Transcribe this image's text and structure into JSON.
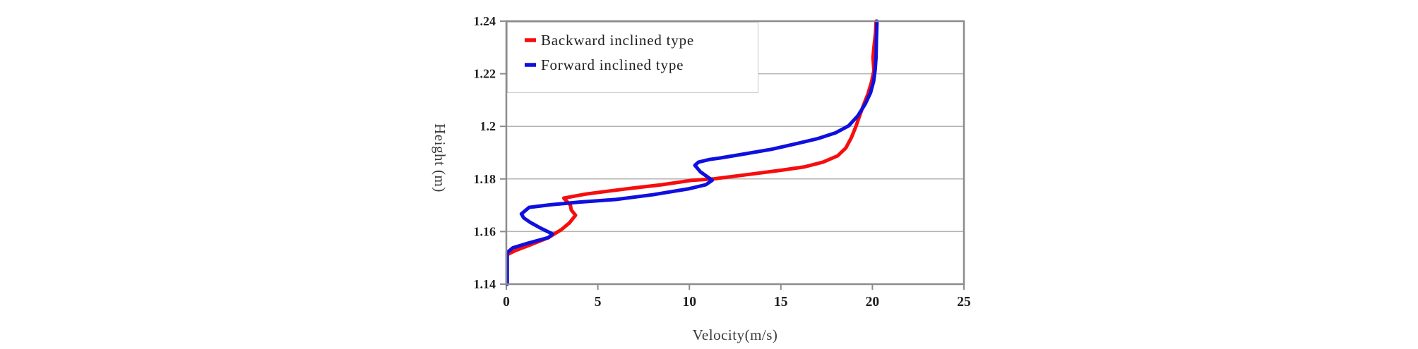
{
  "canvas": {
    "background": "#ffffff"
  },
  "chart_data": {
    "type": "line",
    "title": "",
    "xlabel": "Velocity(m/s)",
    "ylabel": "Height (m)",
    "xlim": [
      0,
      25
    ],
    "ylim": [
      1.14,
      1.24
    ],
    "xticks": [
      "0",
      "5",
      "10",
      "15",
      "20",
      "25"
    ],
    "yticks": [
      "1.24",
      "1.22",
      "1.2",
      "1.18",
      "1.16",
      "1.14"
    ],
    "grid": {
      "horizontal_at": [
        1.22,
        1.2,
        1.18,
        1.16
      ],
      "vertical": false
    },
    "legend_position": "top-left-inside",
    "frame_color": "#8c8c8c",
    "gridline_color": "#b3b3b3",
    "series": [
      {
        "name": "Backward inclined type",
        "color": "#f60d0d",
        "text_color": "#f83030",
        "points": [
          [
            0.05,
            1.1512
          ],
          [
            0.5,
            1.1528
          ],
          [
            1.3,
            1.1549
          ],
          [
            2.3,
            1.1577
          ],
          [
            3.0,
            1.1607
          ],
          [
            3.45,
            1.1633
          ],
          [
            3.78,
            1.1662
          ],
          [
            3.55,
            1.1682
          ],
          [
            3.5,
            1.17
          ],
          [
            3.14,
            1.1727
          ],
          [
            4.3,
            1.1742
          ],
          [
            5.5,
            1.1753
          ],
          [
            7.0,
            1.1766
          ],
          [
            8.5,
            1.1778
          ],
          [
            10.15,
            1.1795
          ],
          [
            11.3,
            1.18
          ],
          [
            13.0,
            1.1815
          ],
          [
            15.0,
            1.1833
          ],
          [
            16.3,
            1.1846
          ],
          [
            17.3,
            1.1864
          ],
          [
            18.1,
            1.1888
          ],
          [
            18.55,
            1.1918
          ],
          [
            18.85,
            1.1957
          ],
          [
            19.1,
            1.2
          ],
          [
            19.3,
            1.204
          ],
          [
            19.5,
            1.2078
          ],
          [
            19.75,
            1.2122
          ],
          [
            19.95,
            1.2168
          ],
          [
            20.08,
            1.2212
          ],
          [
            20.03,
            1.2262
          ],
          [
            20.1,
            1.2312
          ],
          [
            20.17,
            1.2355
          ],
          [
            20.2,
            1.24
          ]
        ]
      },
      {
        "name": "Forward inclined type",
        "color": "#0f0fdf",
        "text_color": "#3c3ccc",
        "points": [
          [
            0.05,
            1.14
          ],
          [
            0.05,
            1.152
          ],
          [
            0.35,
            1.1538
          ],
          [
            1.2,
            1.1556
          ],
          [
            2.3,
            1.1577
          ],
          [
            2.52,
            1.1591
          ],
          [
            1.9,
            1.1612
          ],
          [
            1.3,
            1.1635
          ],
          [
            0.95,
            1.1652
          ],
          [
            0.82,
            1.1667
          ],
          [
            1.25,
            1.1692
          ],
          [
            2.43,
            1.1702
          ],
          [
            4.0,
            1.1712
          ],
          [
            6.0,
            1.1722
          ],
          [
            8.0,
            1.174
          ],
          [
            10.0,
            1.1763
          ],
          [
            10.9,
            1.1778
          ],
          [
            11.25,
            1.1795
          ],
          [
            10.6,
            1.1827
          ],
          [
            10.3,
            1.1852
          ],
          [
            10.5,
            1.1864
          ],
          [
            11.1,
            1.1874
          ],
          [
            11.7,
            1.188
          ],
          [
            13.0,
            1.1895
          ],
          [
            14.5,
            1.1913
          ],
          [
            15.9,
            1.1935
          ],
          [
            17.0,
            1.1953
          ],
          [
            18.0,
            1.1976
          ],
          [
            18.7,
            1.2002
          ],
          [
            19.2,
            1.204
          ],
          [
            19.6,
            1.2084
          ],
          [
            19.9,
            1.2128
          ],
          [
            20.07,
            1.2172
          ],
          [
            20.15,
            1.2215
          ],
          [
            20.2,
            1.2265
          ],
          [
            20.22,
            1.233
          ],
          [
            20.25,
            1.24
          ]
        ]
      }
    ]
  }
}
